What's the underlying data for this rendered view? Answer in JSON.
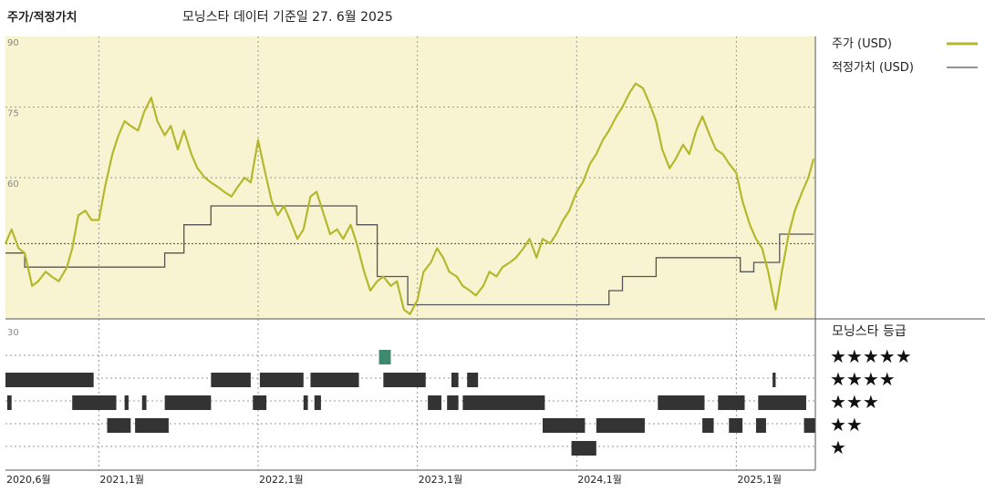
{
  "header": {
    "title": "주가/적정가치",
    "subtitle": "모닝스타 데이터 기준일 27. 6월 2025"
  },
  "legend": {
    "price_label": "주가 (USD)",
    "fair_label": "적정가치 (USD)",
    "rating_title": "모닝스타 등급"
  },
  "colors": {
    "price": "#b5b82d",
    "fair": "#555555",
    "upper_bg": "#f8f4d2",
    "rating": "#333333",
    "rating_highlight": "#3f8a6e"
  },
  "chart_data": {
    "type": "line",
    "title": "주가/적정가치",
    "subtitle": "모닝스타 데이터 기준일 27. 6월 2025",
    "ylim": [
      30,
      90
    ],
    "y_ticks": [
      90,
      75,
      60,
      30
    ],
    "x_range": [
      "2020-06-01",
      "2025-07-01"
    ],
    "x_ticks": [
      {
        "date": "2020-06-01",
        "label": "2020,6월"
      },
      {
        "date": "2021-01-01",
        "label": "2021,1월"
      },
      {
        "date": "2022-01-01",
        "label": "2022,1월"
      },
      {
        "date": "2023-01-01",
        "label": "2023,1월"
      },
      {
        "date": "2024-01-01",
        "label": "2024,1월"
      },
      {
        "date": "2025-01-01",
        "label": "2025,1월"
      }
    ],
    "series": [
      {
        "name": "주가 (USD)",
        "points": [
          [
            "2020-06-01",
            46
          ],
          [
            "2020-06-15",
            49
          ],
          [
            "2020-07-01",
            45
          ],
          [
            "2020-07-15",
            44
          ],
          [
            "2020-08-01",
            37
          ],
          [
            "2020-08-15",
            38
          ],
          [
            "2020-09-01",
            40
          ],
          [
            "2020-09-15",
            39
          ],
          [
            "2020-10-01",
            38
          ],
          [
            "2020-10-20",
            41
          ],
          [
            "2020-11-01",
            45
          ],
          [
            "2020-11-15",
            52
          ],
          [
            "2020-12-01",
            53
          ],
          [
            "2020-12-15",
            51
          ],
          [
            "2021-01-01",
            51
          ],
          [
            "2021-01-15",
            58
          ],
          [
            "2021-02-01",
            65
          ],
          [
            "2021-02-15",
            69
          ],
          [
            "2021-03-01",
            72
          ],
          [
            "2021-03-15",
            71
          ],
          [
            "2021-04-01",
            70
          ],
          [
            "2021-04-15",
            74
          ],
          [
            "2021-05-01",
            77
          ],
          [
            "2021-05-15",
            72
          ],
          [
            "2021-06-01",
            69
          ],
          [
            "2021-06-15",
            71
          ],
          [
            "2021-07-01",
            66
          ],
          [
            "2021-07-15",
            70
          ],
          [
            "2021-08-01",
            65
          ],
          [
            "2021-08-15",
            62
          ],
          [
            "2021-09-01",
            60
          ],
          [
            "2021-09-15",
            59
          ],
          [
            "2021-10-01",
            58
          ],
          [
            "2021-10-15",
            57
          ],
          [
            "2021-11-01",
            56
          ],
          [
            "2021-11-15",
            58
          ],
          [
            "2021-12-01",
            60
          ],
          [
            "2021-12-15",
            59
          ],
          [
            "2022-01-01",
            68
          ],
          [
            "2022-01-15",
            62
          ],
          [
            "2022-02-01",
            55
          ],
          [
            "2022-02-15",
            52
          ],
          [
            "2022-03-01",
            54
          ],
          [
            "2022-03-15",
            51
          ],
          [
            "2022-04-01",
            47
          ],
          [
            "2022-04-15",
            49
          ],
          [
            "2022-05-01",
            56
          ],
          [
            "2022-05-15",
            57
          ],
          [
            "2022-06-01",
            52
          ],
          [
            "2022-06-15",
            48
          ],
          [
            "2022-07-01",
            49
          ],
          [
            "2022-07-15",
            47
          ],
          [
            "2022-08-01",
            50
          ],
          [
            "2022-08-15",
            46
          ],
          [
            "2022-09-01",
            40
          ],
          [
            "2022-09-15",
            36
          ],
          [
            "2022-10-01",
            38
          ],
          [
            "2022-10-15",
            39
          ],
          [
            "2022-11-01",
            37
          ],
          [
            "2022-11-15",
            38
          ],
          [
            "2022-12-01",
            32
          ],
          [
            "2022-12-15",
            31
          ],
          [
            "2023-01-01",
            34
          ],
          [
            "2023-01-15",
            40
          ],
          [
            "2023-02-01",
            42
          ],
          [
            "2023-02-15",
            45
          ],
          [
            "2023-03-01",
            43
          ],
          [
            "2023-03-15",
            40
          ],
          [
            "2023-04-01",
            39
          ],
          [
            "2023-04-15",
            37
          ],
          [
            "2023-05-01",
            36
          ],
          [
            "2023-05-15",
            35
          ],
          [
            "2023-06-01",
            37
          ],
          [
            "2023-06-15",
            40
          ],
          [
            "2023-07-01",
            39
          ],
          [
            "2023-07-15",
            41
          ],
          [
            "2023-08-01",
            42
          ],
          [
            "2023-08-15",
            43
          ],
          [
            "2023-09-01",
            45
          ],
          [
            "2023-09-15",
            47
          ],
          [
            "2023-10-01",
            43
          ],
          [
            "2023-10-15",
            47
          ],
          [
            "2023-11-01",
            46
          ],
          [
            "2023-11-15",
            48
          ],
          [
            "2023-12-01",
            51
          ],
          [
            "2023-12-15",
            53
          ],
          [
            "2024-01-01",
            57
          ],
          [
            "2024-01-15",
            59
          ],
          [
            "2024-02-01",
            63
          ],
          [
            "2024-02-15",
            65
          ],
          [
            "2024-03-01",
            68
          ],
          [
            "2024-03-15",
            70
          ],
          [
            "2024-04-01",
            73
          ],
          [
            "2024-04-15",
            75
          ],
          [
            "2024-05-01",
            78
          ],
          [
            "2024-05-15",
            80
          ],
          [
            "2024-06-01",
            79
          ],
          [
            "2024-06-15",
            76
          ],
          [
            "2024-07-01",
            72
          ],
          [
            "2024-07-15",
            66
          ],
          [
            "2024-08-01",
            62
          ],
          [
            "2024-08-15",
            64
          ],
          [
            "2024-09-01",
            67
          ],
          [
            "2024-09-15",
            65
          ],
          [
            "2024-10-01",
            70
          ],
          [
            "2024-10-15",
            73
          ],
          [
            "2024-11-01",
            69
          ],
          [
            "2024-11-15",
            66
          ],
          [
            "2024-12-01",
            65
          ],
          [
            "2024-12-15",
            63
          ],
          [
            "2025-01-01",
            61
          ],
          [
            "2025-01-15",
            55
          ],
          [
            "2025-02-01",
            50
          ],
          [
            "2025-02-15",
            47
          ],
          [
            "2025-03-01",
            45
          ],
          [
            "2025-03-15",
            40
          ],
          [
            "2025-04-01",
            32
          ],
          [
            "2025-04-15",
            40
          ],
          [
            "2025-05-01",
            48
          ],
          [
            "2025-05-15",
            53
          ],
          [
            "2025-06-01",
            57
          ],
          [
            "2025-06-15",
            60
          ],
          [
            "2025-06-27",
            64
          ]
        ]
      },
      {
        "name": "적정가치 (USD)",
        "steps": [
          [
            "2020-06-01",
            44
          ],
          [
            "2020-07-15",
            41
          ],
          [
            "2021-06-01",
            44
          ],
          [
            "2021-07-15",
            50
          ],
          [
            "2021-09-15",
            54
          ],
          [
            "2022-08-15",
            50
          ],
          [
            "2022-10-01",
            39
          ],
          [
            "2022-12-10",
            33
          ],
          [
            "2024-03-15",
            36
          ],
          [
            "2024-04-15",
            39
          ],
          [
            "2024-07-01",
            43
          ],
          [
            "2025-01-10",
            40
          ],
          [
            "2025-02-10",
            42
          ],
          [
            "2025-04-10",
            48
          ],
          [
            "2025-06-27",
            48
          ]
        ]
      }
    ],
    "reference_line": 46
  },
  "ratings": {
    "labels": [
      "★★★★★",
      "★★★★",
      "★★★",
      "★★",
      "★"
    ],
    "segments": [
      {
        "stars": 5,
        "start": "2022-10-05",
        "end": "2022-11-01",
        "highlight": true
      },
      {
        "stars": 4,
        "start": "2020-06-01",
        "end": "2020-12-20"
      },
      {
        "stars": 4,
        "start": "2021-09-15",
        "end": "2021-12-15"
      },
      {
        "stars": 4,
        "start": "2022-01-05",
        "end": "2022-04-15"
      },
      {
        "stars": 4,
        "start": "2022-05-01",
        "end": "2022-08-20"
      },
      {
        "stars": 4,
        "start": "2022-10-15",
        "end": "2023-01-20"
      },
      {
        "stars": 4,
        "start": "2023-03-20",
        "end": "2023-04-05"
      },
      {
        "stars": 4,
        "start": "2023-04-25",
        "end": "2023-05-20"
      },
      {
        "stars": 4,
        "start": "2025-03-25",
        "end": "2025-04-01"
      },
      {
        "stars": 3,
        "start": "2020-06-05",
        "end": "2020-06-15"
      },
      {
        "stars": 3,
        "start": "2020-11-01",
        "end": "2021-02-10"
      },
      {
        "stars": 3,
        "start": "2021-03-01",
        "end": "2021-03-10"
      },
      {
        "stars": 3,
        "start": "2021-04-10",
        "end": "2021-04-20"
      },
      {
        "stars": 3,
        "start": "2021-06-01",
        "end": "2021-09-15"
      },
      {
        "stars": 3,
        "start": "2021-12-20",
        "end": "2022-01-20"
      },
      {
        "stars": 3,
        "start": "2022-04-15",
        "end": "2022-04-25"
      },
      {
        "stars": 3,
        "start": "2022-05-10",
        "end": "2022-05-25"
      },
      {
        "stars": 3,
        "start": "2023-01-25",
        "end": "2023-02-25"
      },
      {
        "stars": 3,
        "start": "2023-03-10",
        "end": "2023-04-05"
      },
      {
        "stars": 3,
        "start": "2023-04-15",
        "end": "2023-10-20"
      },
      {
        "stars": 3,
        "start": "2024-07-05",
        "end": "2024-10-20"
      },
      {
        "stars": 3,
        "start": "2024-11-20",
        "end": "2025-01-20"
      },
      {
        "stars": 3,
        "start": "2025-02-20",
        "end": "2025-06-10"
      },
      {
        "stars": 2,
        "start": "2021-01-20",
        "end": "2021-03-15"
      },
      {
        "stars": 2,
        "start": "2021-03-25",
        "end": "2021-06-10"
      },
      {
        "stars": 2,
        "start": "2023-10-15",
        "end": "2024-01-20"
      },
      {
        "stars": 2,
        "start": "2024-02-15",
        "end": "2024-06-05"
      },
      {
        "stars": 2,
        "start": "2024-10-15",
        "end": "2024-11-10"
      },
      {
        "stars": 2,
        "start": "2024-12-15",
        "end": "2025-01-15"
      },
      {
        "stars": 2,
        "start": "2025-02-15",
        "end": "2025-03-10"
      },
      {
        "stars": 2,
        "start": "2025-06-05",
        "end": "2025-07-01"
      },
      {
        "stars": 1,
        "start": "2023-12-20",
        "end": "2024-02-15"
      }
    ]
  }
}
